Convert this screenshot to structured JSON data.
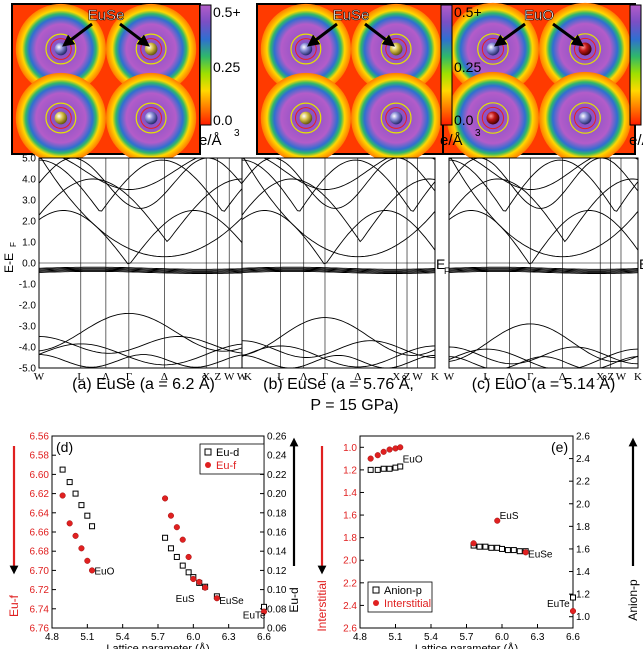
{
  "colorbar": {
    "top_label": "0.5+",
    "mid_label": "0.25",
    "bottom_label": "0.0",
    "unit_text": "e/Å",
    "unit_exp": "3",
    "stops": [
      "#ff1a00",
      "#ff7a00",
      "#ffd800",
      "#9ee000",
      "#2fb86a",
      "#2f6fd0",
      "#7a4fc4",
      "#b35cc9"
    ]
  },
  "density_maps": [
    {
      "label": "EuSe",
      "panel": "a"
    },
    {
      "label": "EuSe",
      "panel": "b"
    },
    {
      "label": "EuO",
      "panel": "c"
    }
  ],
  "band_panels": {
    "yaxis_label": "E-E",
    "yaxis_sub": "F",
    "side_label": "E",
    "side_sub": "F",
    "yticks": [
      "5.0",
      "4.0",
      "3.0",
      "2.0",
      "1.0",
      "0.0",
      "-1.0",
      "-2.0",
      "-3.0",
      "-4.0",
      "-5.0"
    ],
    "kpoints": [
      "W",
      "L",
      "Λ",
      "Γ",
      "Δ",
      "X",
      "Z",
      "W",
      "K"
    ],
    "captions": [
      {
        "line1": "(a) EuSe (a = 6.2 Å)",
        "line2": ""
      },
      {
        "line1": "(b) EuSe (a = 5.76 Å,",
        "line2": "P = 15 GPa)"
      },
      {
        "line1": "(c) EuO (a = 5.14 Å)",
        "line2": ""
      }
    ]
  },
  "chart_data": [
    {
      "type": "scatter",
      "panel_label": "(d)",
      "xlabel": "Lattice parameter (Å)",
      "ylabel_left": "Eu-f",
      "ylabel_right": "Eu-d",
      "xlim": [
        4.8,
        6.6
      ],
      "xticks": [
        "4.8",
        "5.1",
        "5.4",
        "5.7",
        "6.0",
        "6.3",
        "6.6"
      ],
      "ylim_left": [
        6.76,
        6.56
      ],
      "yticks_left": [
        "6.56",
        "6.58",
        "6.60",
        "6.62",
        "6.64",
        "6.66",
        "6.68",
        "6.70",
        "6.72",
        "6.74",
        "6.76"
      ],
      "ylim_right": [
        0.06,
        0.26
      ],
      "yticks_right": [
        "0.26",
        "0.24",
        "0.22",
        "0.20",
        "0.18",
        "0.16",
        "0.14",
        "0.12",
        "0.10",
        "0.08",
        "0.06"
      ],
      "legend": [
        "Eu-d",
        "Eu-f"
      ],
      "legend_position": "top-right",
      "series": [
        {
          "name": "Eu-d",
          "axis": "right",
          "marker": "open-square",
          "color": "#000000",
          "x": [
            4.89,
            4.95,
            5.0,
            5.05,
            5.1,
            5.14,
            5.76,
            5.81,
            5.86,
            5.91,
            5.96,
            6.0,
            6.05,
            6.1,
            6.2,
            6.6
          ],
          "y": [
            0.225,
            0.212,
            0.2,
            0.188,
            0.177,
            0.166,
            0.154,
            0.143,
            0.134,
            0.125,
            0.118,
            0.113,
            0.107,
            0.103,
            0.093,
            0.082
          ]
        },
        {
          "name": "Eu-f",
          "axis": "left",
          "marker": "filled-circle",
          "color": "#e02020",
          "x": [
            4.89,
            4.95,
            5.0,
            5.05,
            5.1,
            5.14,
            5.76,
            5.81,
            5.86,
            5.91,
            5.96,
            6.0,
            6.05,
            6.1,
            6.2,
            6.6
          ],
          "y": [
            6.622,
            6.651,
            6.664,
            6.677,
            6.69,
            6.7,
            6.625,
            6.643,
            6.655,
            6.668,
            6.686,
            6.709,
            6.712,
            6.718,
            6.729,
            6.743
          ]
        }
      ],
      "annotations": [
        {
          "text": "EuO",
          "x": 5.16,
          "y": 6.7
        },
        {
          "text": "EuSe",
          "x": 6.22,
          "y": 6.731
        },
        {
          "text": "EuS",
          "x": 5.85,
          "y": 6.729
        },
        {
          "text": "EuTe",
          "x": 6.42,
          "y": 6.746
        }
      ]
    },
    {
      "type": "scatter",
      "panel_label": "(e)",
      "xlabel": "Lattice parameter (Å)",
      "ylabel_left": "Interstitial",
      "ylabel_right": "Anion-p",
      "xlim": [
        4.8,
        6.6
      ],
      "xticks": [
        "4.8",
        "5.1",
        "5.4",
        "5.7",
        "6.0",
        "6.3",
        "6.6"
      ],
      "ylim_left": [
        2.6,
        0.9
      ],
      "yticks_left": [
        "1.0",
        "1.2",
        "1.4",
        "1.6",
        "1.8",
        "2.0",
        "2.2",
        "2.4",
        "2.6"
      ],
      "ylim_right": [
        0.9,
        2.6
      ],
      "yticks_right": [
        "2.6",
        "2.4",
        "2.2",
        "2.0",
        "1.8",
        "1.6",
        "1.4",
        "1.2",
        "1.0"
      ],
      "legend": [
        "Anion-p",
        "Interstitial"
      ],
      "legend_position": "bottom-left",
      "series": [
        {
          "name": "Anion-p",
          "axis": "right",
          "marker": "open-square",
          "color": "#000000",
          "x": [
            4.89,
            4.95,
            5.0,
            5.05,
            5.1,
            5.14,
            5.76,
            5.81,
            5.86,
            5.91,
            5.96,
            6.0,
            6.05,
            6.1,
            6.15,
            6.2,
            6.6
          ],
          "y": [
            2.3,
            2.3,
            2.31,
            2.31,
            2.32,
            2.33,
            1.63,
            1.62,
            1.62,
            1.61,
            1.61,
            1.6,
            1.59,
            1.59,
            1.58,
            1.58,
            1.17
          ]
        },
        {
          "name": "Interstitial",
          "axis": "left",
          "marker": "filled-circle",
          "color": "#e02020",
          "x": [
            4.89,
            4.95,
            5.0,
            5.05,
            5.1,
            5.14,
            5.76,
            5.96,
            6.2,
            6.6
          ],
          "y": [
            1.1,
            1.07,
            1.04,
            1.02,
            1.01,
            1.0,
            1.85,
            1.65,
            1.93,
            2.45
          ]
        }
      ],
      "annotations": [
        {
          "text": "EuO",
          "x": 5.16,
          "y": 1.1
        },
        {
          "text": "EuS",
          "x": 5.98,
          "y": 1.6
        },
        {
          "text": "EuSe",
          "x": 6.22,
          "y": 1.94
        },
        {
          "text": "EuTe",
          "x": 6.38,
          "y": 2.38
        }
      ]
    }
  ]
}
